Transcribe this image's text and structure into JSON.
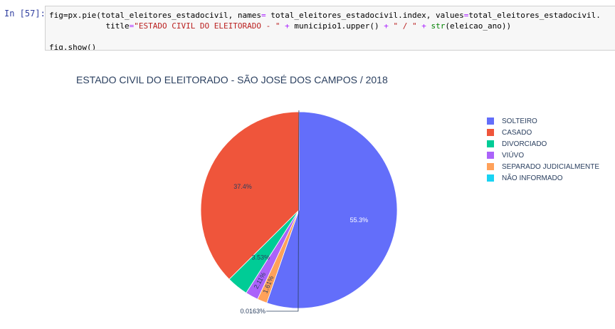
{
  "notebook": {
    "prompt": "In [57]:",
    "code_line1_a": "fig=px.pie(total_eleitores_estadocivil, names",
    "code_line1_b": "=",
    "code_line1_c": " total_eleitores_estadocivil.index, values",
    "code_line1_d": "=",
    "code_line1_e": "total_eleitores_estadocivil.",
    "code_line2_indent": "            title",
    "code_line2_eq": "=",
    "code_line2_str1": "\"ESTADO CIVIL DO ELEITORADO - \"",
    "code_line2_plus1": " + ",
    "code_line2_mid": "municipio1.upper() ",
    "code_line2_plus2": "+ ",
    "code_line2_str2": "\" / \"",
    "code_line2_plus3": " + ",
    "code_line2_func": "str",
    "code_line2_tail": "(eleicao_ano))",
    "code_line3": "fig.show()"
  },
  "chart_data": {
    "type": "pie",
    "title": "ESTADO CIVIL DO ELEITORADO - SÃO JOSÉ DOS CAMPOS / 2018",
    "legend_position": "right",
    "start_angle_deg": 0,
    "direction": "clockwise",
    "slices": [
      {
        "name": "SOLTEIRO",
        "value": 55.3,
        "label": "55.3%",
        "color": "#636efa"
      },
      {
        "name": "SEPARADO JUDICIALMENTE",
        "value": 1.61,
        "label": "1.61%",
        "color": "#ffa15a"
      },
      {
        "name": "VIÚVO",
        "value": 2.11,
        "label": "2.11%",
        "color": "#ab63fa"
      },
      {
        "name": "DIVORCIADO",
        "value": 3.53,
        "label": "3.53%",
        "color": "#00cc96"
      },
      {
        "name": "CASADO",
        "value": 37.4,
        "label": "37.4%",
        "color": "#ef553b"
      },
      {
        "name": "NÃO INFORMADO",
        "value": 0.0163,
        "label": "0.0163%",
        "color": "#19d3f3"
      }
    ],
    "legend": [
      {
        "name": "SOLTEIRO",
        "color": "#636efa"
      },
      {
        "name": "CASADO",
        "color": "#ef553b"
      },
      {
        "name": "DIVORCIADO",
        "color": "#00cc96"
      },
      {
        "name": "VIÚVO",
        "color": "#ab63fa"
      },
      {
        "name": "SEPARADO JUDICIALMENTE",
        "color": "#ffa15a"
      },
      {
        "name": "NÃO INFORMADO",
        "color": "#19d3f3"
      }
    ]
  }
}
